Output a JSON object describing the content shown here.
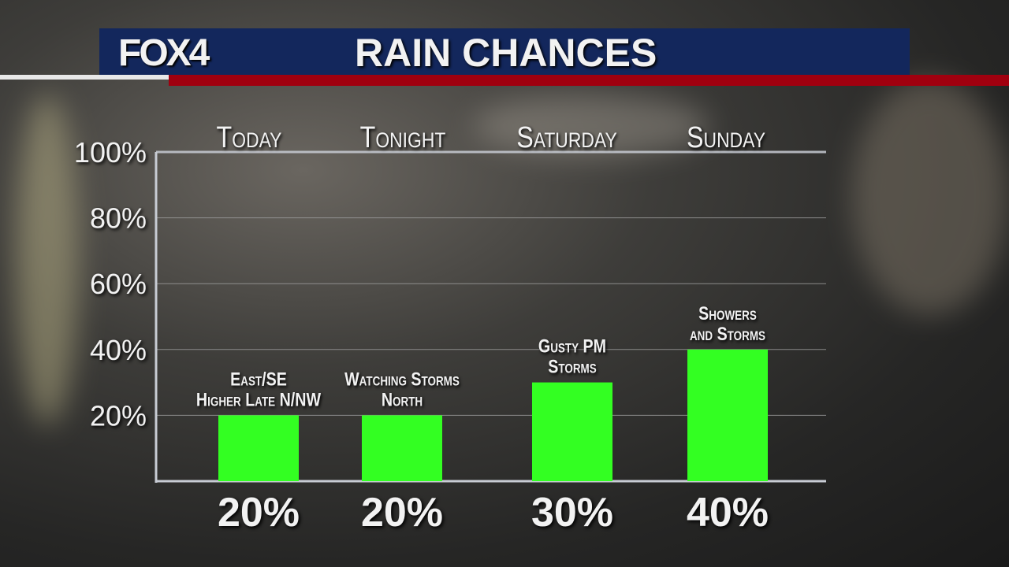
{
  "header": {
    "logo": "FOX4",
    "title": "RAIN CHANCES"
  },
  "colors": {
    "bar": "#33ff22",
    "header": "#13275c",
    "accent": "#a0000f"
  },
  "chart_data": {
    "type": "bar",
    "title": "RAIN CHANCES",
    "categories": [
      "Today",
      "Tonight",
      "Saturday",
      "Sunday"
    ],
    "values": [
      20,
      20,
      30,
      40
    ],
    "value_labels": [
      "20%",
      "20%",
      "30%",
      "40%"
    ],
    "annotations": [
      [
        "East/SE",
        "Higher Late N/NW"
      ],
      [
        "Watching Storms",
        "North"
      ],
      [
        "Gusty PM",
        "Storms"
      ],
      [
        "Showers",
        "and Storms"
      ]
    ],
    "yticks": [
      20,
      40,
      60,
      80,
      100
    ],
    "ytick_labels": [
      "20%",
      "40%",
      "60%",
      "80%",
      "100%"
    ],
    "ylim": [
      0,
      100
    ],
    "grid": true,
    "xlabel": "",
    "ylabel": ""
  }
}
